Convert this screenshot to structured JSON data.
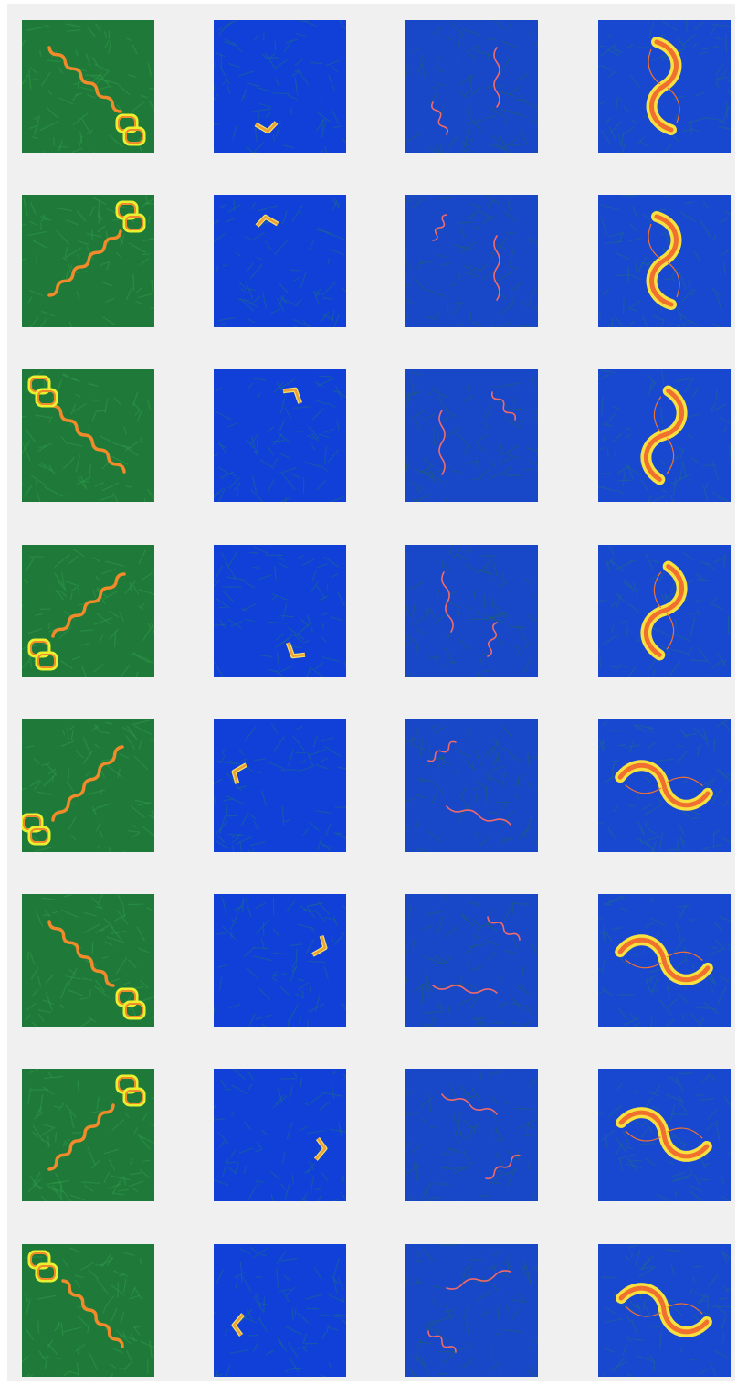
{
  "figure": {
    "background_color": "#f0f0f0",
    "grid": {
      "rows": 8,
      "columns": 4
    },
    "column_styles": [
      {
        "name": "green-field-twin-helix",
        "colors": {
          "bg": "#1f7a3a",
          "bg2": "#2f9a4a",
          "curve": "#f08a2a",
          "glow": "#e8f030"
        }
      },
      {
        "name": "blue-field-small-bent",
        "colors": {
          "bg": "#1040d8",
          "bg2": "#1e6a8a",
          "curve": "#f0a030",
          "glow": "#f0e070"
        }
      },
      {
        "name": "blue-field-two-filaments",
        "colors": {
          "bg": "#1848c8",
          "bg2": "#206070",
          "curve": "#f06a6a",
          "glow": "#f0a0a0"
        }
      },
      {
        "name": "blue-field-s-swirl",
        "colors": {
          "bg": "#1848d0",
          "bg2": "#1e6a8a",
          "curve": "#f07030",
          "glow": "#f8e040"
        }
      }
    ],
    "panels": [
      [
        {
          "pose": "dl"
        },
        {
          "pose": "a"
        },
        {
          "pose": "a"
        },
        {
          "pose": "v1"
        }
      ],
      [
        {
          "pose": "ul"
        },
        {
          "pose": "b"
        },
        {
          "pose": "b"
        },
        {
          "pose": "v2"
        }
      ],
      [
        {
          "pose": "dr"
        },
        {
          "pose": "c"
        },
        {
          "pose": "c"
        },
        {
          "pose": "v3"
        }
      ],
      [
        {
          "pose": "ur"
        },
        {
          "pose": "d"
        },
        {
          "pose": "d"
        },
        {
          "pose": "v4"
        }
      ],
      [
        {
          "pose": "ur2"
        },
        {
          "pose": "e"
        },
        {
          "pose": "e"
        },
        {
          "pose": "h1"
        }
      ],
      [
        {
          "pose": "dr2"
        },
        {
          "pose": "f"
        },
        {
          "pose": "f"
        },
        {
          "pose": "h2"
        }
      ],
      [
        {
          "pose": "ul2"
        },
        {
          "pose": "g"
        },
        {
          "pose": "g"
        },
        {
          "pose": "h3"
        }
      ],
      [
        {
          "pose": "dr3"
        },
        {
          "pose": "h"
        },
        {
          "pose": "h"
        },
        {
          "pose": "h4"
        }
      ]
    ]
  }
}
